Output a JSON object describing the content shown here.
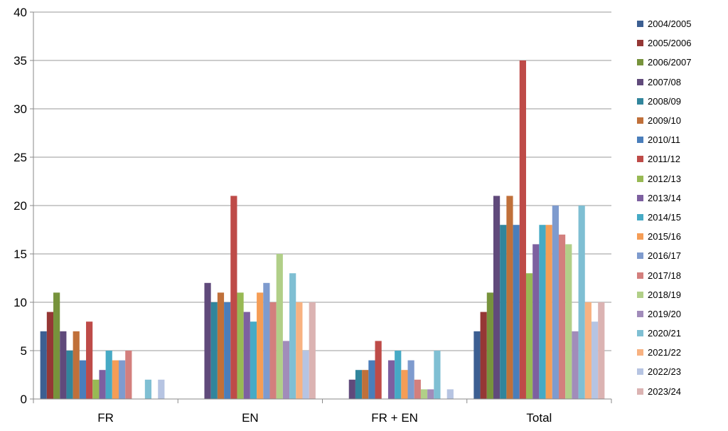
{
  "chart_data": {
    "type": "bar",
    "title": "",
    "xlabel": "",
    "ylabel": "",
    "ylim": [
      0,
      40
    ],
    "yticks": [
      0,
      5,
      10,
      15,
      20,
      25,
      30,
      35,
      40
    ],
    "grid": true,
    "legend_position": "right",
    "categories": [
      "FR",
      "EN",
      "FR + EN",
      "Total"
    ],
    "series": [
      {
        "name": "2004/2005",
        "color": "#3c5f92",
        "values": [
          7,
          0,
          0,
          7
        ]
      },
      {
        "name": "2005/2006",
        "color": "#953735",
        "values": [
          9,
          0,
          0,
          9
        ]
      },
      {
        "name": "2006/2007",
        "color": "#77933c",
        "values": [
          11,
          0,
          0,
          11
        ]
      },
      {
        "name": "2007/08",
        "color": "#604a7b",
        "values": [
          7,
          12,
          2,
          21
        ]
      },
      {
        "name": "2008/09",
        "color": "#31859c",
        "values": [
          5,
          10,
          3,
          18
        ]
      },
      {
        "name": "2009/10",
        "color": "#c0703a",
        "values": [
          7,
          11,
          3,
          21
        ]
      },
      {
        "name": "2010/11",
        "color": "#4a7ebb",
        "values": [
          4,
          10,
          4,
          18
        ]
      },
      {
        "name": "2011/12",
        "color": "#be4b48",
        "values": [
          8,
          21,
          6,
          35
        ]
      },
      {
        "name": "2012/13",
        "color": "#98b954",
        "values": [
          2,
          11,
          0,
          13
        ]
      },
      {
        "name": "2013/14",
        "color": "#7d60a0",
        "values": [
          3,
          9,
          4,
          16
        ]
      },
      {
        "name": "2014/15",
        "color": "#46aac5",
        "values": [
          5,
          8,
          5,
          18
        ]
      },
      {
        "name": "2015/16",
        "color": "#f59d56",
        "values": [
          4,
          11,
          3,
          18
        ]
      },
      {
        "name": "2016/17",
        "color": "#7e9bce",
        "values": [
          4,
          12,
          4,
          20
        ]
      },
      {
        "name": "2017/18",
        "color": "#d37f7d",
        "values": [
          5,
          10,
          2,
          17
        ]
      },
      {
        "name": "2018/19",
        "color": "#b1cf88",
        "values": [
          0,
          15,
          1,
          16
        ]
      },
      {
        "name": "2019/20",
        "color": "#a18cba",
        "values": [
          0,
          6,
          1,
          7
        ]
      },
      {
        "name": "2020/21",
        "color": "#7fbfd3",
        "values": [
          2,
          13,
          5,
          20
        ]
      },
      {
        "name": "2021/22",
        "color": "#f8b281",
        "values": [
          0,
          10,
          0,
          10
        ]
      },
      {
        "name": "2022/23",
        "color": "#b6c4e2",
        "values": [
          2,
          5,
          1,
          8
        ]
      },
      {
        "name": "2023/24",
        "color": "#dbb3b2",
        "values": [
          0,
          10,
          0,
          10
        ]
      }
    ]
  }
}
